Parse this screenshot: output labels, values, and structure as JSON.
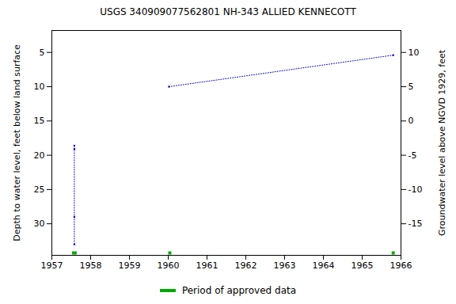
{
  "chart_data": {
    "type": "line",
    "title": "USGS 340909077562801 NH-343 ALLIED KENNECOTT",
    "x_label": null,
    "y_label": "Depth to water level, feet below land surface",
    "y2_label": "Groundwater level above NGVD 1929, feet",
    "x": [
      1957.58,
      1957.58,
      1957.58,
      1957.58,
      1958.8,
      1960.02,
      1965.8
    ],
    "series": [
      {
        "name": "Depth to water level",
        "color": "#0000cc",
        "marker": "dot",
        "line_style": "dotted",
        "values": [
          18.6,
          19.1,
          29.0,
          33.0,
          null,
          10.0,
          5.4
        ]
      }
    ],
    "approved": {
      "name": "Period of approved data",
      "color": "#00aa00",
      "periods": [
        [
          1957.52,
          1957.64
        ],
        [
          1960.0,
          1960.08
        ],
        [
          1965.76,
          1965.84
        ]
      ]
    },
    "xlim": [
      1957,
      1966
    ],
    "xticks": [
      1957,
      1958,
      1959,
      1960,
      1961,
      1962,
      1963,
      1964,
      1965,
      1966
    ],
    "ylim": [
      1.8,
      34.6
    ],
    "yticks": [
      5,
      10,
      15,
      20,
      25,
      30
    ],
    "y2lim": [
      13.2,
      -19.6
    ],
    "y2ticks": [
      10,
      5,
      0,
      -5,
      -10,
      -15
    ],
    "grid": false
  }
}
